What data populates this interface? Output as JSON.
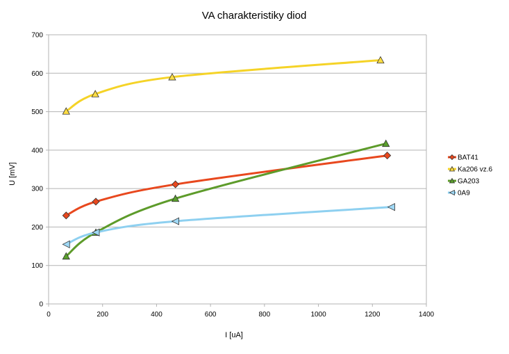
{
  "chart_data": {
    "type": "line",
    "title": "VA charakteristiky diod",
    "xlabel": "I [uA]",
    "ylabel": "U [mV]",
    "xlim": [
      0,
      1400
    ],
    "ylim": [
      0,
      700
    ],
    "xticks": [
      0,
      200,
      400,
      600,
      800,
      1000,
      1200,
      1400
    ],
    "yticks": [
      0,
      100,
      200,
      300,
      400,
      500,
      600,
      700
    ],
    "grid": "horizontal",
    "legend_position": "right",
    "series": [
      {
        "name": "BAT41",
        "color": "#e8481e",
        "marker": "diamond",
        "marker_color": "#e8481e",
        "points": [
          [
            65,
            230
          ],
          [
            175,
            266
          ],
          [
            470,
            311
          ],
          [
            1255,
            386
          ]
        ]
      },
      {
        "name": "Ka206 vz.6",
        "color": "#f5d327",
        "marker": "triangle-up",
        "marker_color": "#ffdd44",
        "points": [
          [
            65,
            501
          ],
          [
            173,
            546
          ],
          [
            458,
            590
          ],
          [
            1230,
            634
          ]
        ]
      },
      {
        "name": "GA203",
        "color": "#5d9b2a",
        "marker": "triangle-up",
        "marker_color": "#5aa02c",
        "points": [
          [
            65,
            124
          ],
          [
            175,
            186
          ],
          [
            470,
            274
          ],
          [
            1250,
            417
          ]
        ]
      },
      {
        "name": "0A9",
        "color": "#8ed0f0",
        "marker": "triangle-left",
        "marker_color": "#9fd8f5",
        "points": [
          [
            65,
            155
          ],
          [
            175,
            186
          ],
          [
            470,
            215
          ],
          [
            1270,
            252
          ]
        ]
      }
    ]
  }
}
